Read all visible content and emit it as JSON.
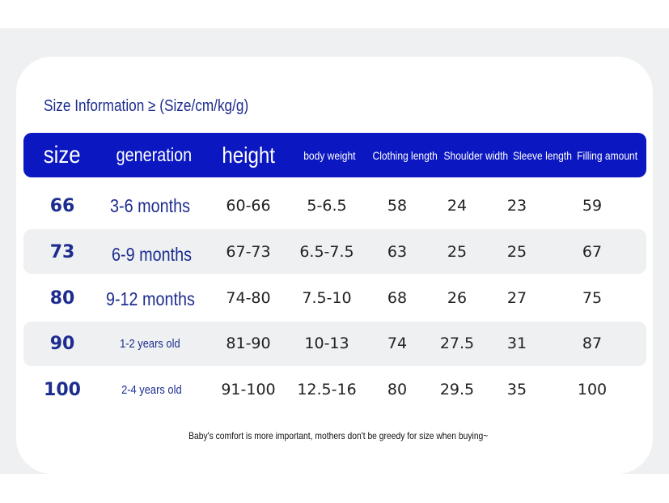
{
  "title": "Size Information ≥ (Size/cm/kg/g)",
  "columns": [
    "size",
    "generation",
    "height",
    "body weight",
    "Clothing length",
    "Shoulder width",
    "Sleeve length",
    "Filling amount"
  ],
  "rows": [
    {
      "size": "66",
      "generation": "3-6 months",
      "height": "60-66",
      "body_weight": "5-6.5",
      "clothing_length": "58",
      "shoulder_width": "24",
      "sleeve_length": "23",
      "filling_amount": "59"
    },
    {
      "size": "73",
      "generation": "6-9 months",
      "height": "67-73",
      "body_weight": "6.5-7.5",
      "clothing_length": "63",
      "shoulder_width": "25",
      "sleeve_length": "25",
      "filling_amount": "67"
    },
    {
      "size": "80",
      "generation": "9-12 months",
      "height": "74-80",
      "body_weight": "7.5-10",
      "clothing_length": "68",
      "shoulder_width": "26",
      "sleeve_length": "27",
      "filling_amount": "75"
    },
    {
      "size": "90",
      "generation": "1-2 years old",
      "height": "81-90",
      "body_weight": "10-13",
      "clothing_length": "74",
      "shoulder_width": "27.5",
      "sleeve_length": "31",
      "filling_amount": "87"
    },
    {
      "size": "100",
      "generation": "2-4 years old",
      "height": "91-100",
      "body_weight": "12.5-16",
      "clothing_length": "80",
      "shoulder_width": "29.5",
      "sleeve_length": "35",
      "filling_amount": "100"
    }
  ],
  "footer": "Baby's comfort is more important, mothers don't be greedy for size when buying~"
}
